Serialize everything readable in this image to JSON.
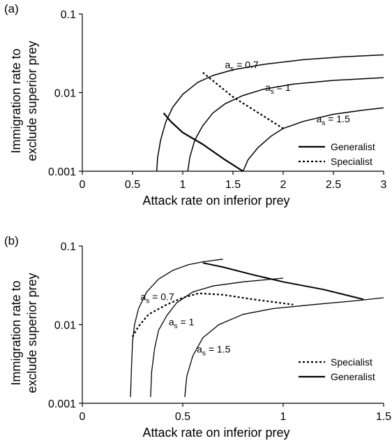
{
  "chart_data": [
    {
      "panel_label": "(a)",
      "type": "line",
      "xlabel": "Attack rate on inferior prey",
      "ylabel_line1": "Immigration rate to",
      "ylabel_line2": "exclude superior prey",
      "xlim": [
        0,
        3
      ],
      "ylim": [
        0.001,
        0.1
      ],
      "yscale": "log",
      "xticks": [
        0,
        0.5,
        1,
        1.5,
        2,
        2.5,
        3
      ],
      "xtick_labels": [
        "0",
        "0.5",
        "1",
        "1.5",
        "2",
        "2.5",
        "3"
      ],
      "yticks": [
        0.001,
        0.01,
        0.1
      ],
      "ytick_labels": [
        "0.001",
        "0.01",
        "0.1"
      ],
      "legend": {
        "placement": "bottom-right",
        "entries": [
          {
            "label": "Generalist",
            "style": "solid"
          },
          {
            "label": "Specialist",
            "style": "dotted"
          }
        ]
      },
      "curve_labels": [
        {
          "label": "a",
          "subscript": "s",
          "value": " = 0.7",
          "x": 1.42,
          "y": 0.0205
        },
        {
          "label": "a",
          "subscript": "s",
          "value": " = 1",
          "x": 1.82,
          "y": 0.0105
        },
        {
          "label": "a",
          "subscript": "s",
          "value": " = 1.5",
          "x": 2.33,
          "y": 0.0042
        }
      ],
      "series": [
        {
          "style": "solid",
          "width": 1.5,
          "points": [
            [
              0.74,
              0.001
            ],
            [
              0.75,
              0.0015
            ],
            [
              0.78,
              0.0025
            ],
            [
              0.83,
              0.0042
            ],
            [
              0.9,
              0.0065
            ],
            [
              1.0,
              0.0095
            ],
            [
              1.15,
              0.0135
            ],
            [
              1.3,
              0.0165
            ],
            [
              1.5,
              0.0195
            ],
            [
              1.8,
              0.0228
            ],
            [
              2.2,
              0.0262
            ],
            [
              2.6,
              0.0285
            ],
            [
              3.0,
              0.0302
            ]
          ]
        },
        {
          "style": "solid",
          "width": 1.5,
          "points": [
            [
              1.05,
              0.001
            ],
            [
              1.07,
              0.0015
            ],
            [
              1.12,
              0.0025
            ],
            [
              1.2,
              0.0038
            ],
            [
              1.3,
              0.0055
            ],
            [
              1.42,
              0.0072
            ],
            [
              1.6,
              0.0092
            ],
            [
              1.8,
              0.011
            ],
            [
              2.1,
              0.0128
            ],
            [
              2.5,
              0.0143
            ],
            [
              3.0,
              0.0155
            ]
          ]
        },
        {
          "style": "solid",
          "width": 1.5,
          "points": [
            [
              1.6,
              0.001
            ],
            [
              1.65,
              0.0014
            ],
            [
              1.75,
              0.002
            ],
            [
              1.88,
              0.0028
            ],
            [
              2.0,
              0.0035
            ],
            [
              2.2,
              0.0043
            ],
            [
              2.5,
              0.0053
            ],
            [
              2.8,
              0.006
            ],
            [
              3.0,
              0.0064
            ]
          ]
        },
        {
          "style": "solid",
          "width": 2.2,
          "points": [
            [
              0.81,
              0.0055
            ],
            [
              0.88,
              0.0043
            ],
            [
              1.0,
              0.0031
            ],
            [
              1.2,
              0.0022
            ],
            [
              1.42,
              0.0014
            ],
            [
              1.6,
              0.001
            ]
          ]
        },
        {
          "style": "dotted",
          "width": 2.2,
          "points": [
            [
              1.2,
              0.018
            ],
            [
              1.5,
              0.0088
            ],
            [
              2.0,
              0.0035
            ]
          ]
        }
      ]
    },
    {
      "panel_label": "(b)",
      "type": "line",
      "xlabel": "Attack rate on inferior prey",
      "ylabel_line1": "Immigration rate to",
      "ylabel_line2": "exclude superior prey",
      "xlim": [
        0,
        1.5
      ],
      "ylim": [
        0.001,
        0.1
      ],
      "yscale": "log",
      "xticks": [
        0,
        0.5,
        1,
        1.5
      ],
      "xtick_labels": [
        "0",
        "0.5",
        "1",
        "1.5"
      ],
      "yticks": [
        0.001,
        0.01,
        0.1
      ],
      "ytick_labels": [
        "0.001",
        "0.01",
        "0.1"
      ],
      "legend": {
        "placement": "bottom-right",
        "entries": [
          {
            "label": "Specialist",
            "style": "dotted"
          },
          {
            "label": "Generalist",
            "style": "solid"
          }
        ]
      },
      "curve_labels": [
        {
          "label": "a",
          "subscript": "s",
          "value": " = 0.7",
          "x": 0.29,
          "y": 0.0205
        },
        {
          "label": "a",
          "subscript": "s",
          "value": " = 1",
          "x": 0.43,
          "y": 0.0098
        },
        {
          "label": "a",
          "subscript": "s",
          "value": " = 1.5",
          "x": 0.57,
          "y": 0.0044
        }
      ],
      "series": [
        {
          "style": "solid",
          "width": 1.3,
          "points": [
            [
              0.24,
              0.0012
            ],
            [
              0.245,
              0.003
            ],
            [
              0.25,
              0.006
            ],
            [
              0.26,
              0.01
            ],
            [
              0.28,
              0.016
            ],
            [
              0.32,
              0.026
            ],
            [
              0.38,
              0.038
            ],
            [
              0.45,
              0.049
            ],
            [
              0.53,
              0.058
            ],
            [
              0.6,
              0.063
            ],
            [
              0.7,
              0.068
            ]
          ]
        },
        {
          "style": "solid",
          "width": 1.3,
          "points": [
            [
              0.34,
              0.0012
            ],
            [
              0.345,
              0.0025
            ],
            [
              0.36,
              0.005
            ],
            [
              0.38,
              0.0085
            ],
            [
              0.42,
              0.013
            ],
            [
              0.47,
              0.019
            ],
            [
              0.55,
              0.026
            ],
            [
              0.65,
              0.031
            ],
            [
              0.8,
              0.035
            ],
            [
              0.9,
              0.037
            ],
            [
              1.0,
              0.039
            ]
          ]
        },
        {
          "style": "solid",
          "width": 1.3,
          "points": [
            [
              0.51,
              0.0012
            ],
            [
              0.52,
              0.0022
            ],
            [
              0.55,
              0.004
            ],
            [
              0.6,
              0.0068
            ],
            [
              0.68,
              0.01
            ],
            [
              0.8,
              0.0135
            ],
            [
              0.95,
              0.016
            ],
            [
              1.15,
              0.018
            ],
            [
              1.35,
              0.02
            ],
            [
              1.5,
              0.022
            ]
          ]
        },
        {
          "style": "solid",
          "width": 2.0,
          "points": [
            [
              0.6,
              0.061
            ],
            [
              0.7,
              0.054
            ],
            [
              0.85,
              0.043
            ],
            [
              1.0,
              0.035
            ],
            [
              1.2,
              0.028
            ],
            [
              1.4,
              0.021
            ]
          ]
        },
        {
          "style": "dotted",
          "width": 2.2,
          "points": [
            [
              0.25,
              0.007
            ],
            [
              0.28,
              0.0095
            ],
            [
              0.33,
              0.0135
            ],
            [
              0.42,
              0.018
            ],
            [
              0.5,
              0.022
            ],
            [
              0.58,
              0.025
            ],
            [
              0.7,
              0.024
            ],
            [
              0.85,
              0.021
            ],
            [
              1.05,
              0.018
            ]
          ]
        }
      ]
    }
  ]
}
